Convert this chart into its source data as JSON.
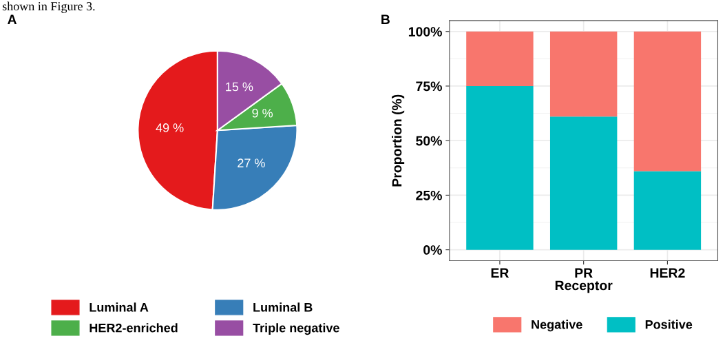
{
  "chart_data": [
    {
      "type": "pie",
      "title": "A",
      "categories": [
        "Luminal A",
        "Luminal B",
        "HER2-enriched",
        "Triple negative"
      ],
      "values": [
        49,
        27,
        9,
        15
      ],
      "colors": [
        "#e41a1c",
        "#377eb8",
        "#4daf4a",
        "#984ea3"
      ],
      "value_labels": [
        "49 %",
        "27 %",
        "9 %",
        "15 %"
      ],
      "legend": "bottom",
      "annotations": [
        "shown in Figure 3."
      ]
    },
    {
      "type": "bar",
      "title": "B",
      "stacked": true,
      "categories": [
        "ER",
        "PR",
        "HER2"
      ],
      "xlabel": "Receptor",
      "ylabel": "Proportion (%)",
      "ylim": [
        -5,
        105
      ],
      "yticks": [
        {
          "value": 0,
          "label": "0%"
        },
        {
          "value": 25,
          "label": "25%"
        },
        {
          "value": 50,
          "label": "50%"
        },
        {
          "value": 75,
          "label": "75%"
        },
        {
          "value": 100,
          "label": "100%"
        }
      ],
      "grid": true,
      "legend": "bottom",
      "series": [
        {
          "name": "Positive",
          "color": "#00bfc4",
          "values": [
            75,
            61,
            36
          ]
        },
        {
          "name": "Negative",
          "color": "#f8766d",
          "values": [
            25,
            39,
            64
          ]
        }
      ]
    }
  ]
}
